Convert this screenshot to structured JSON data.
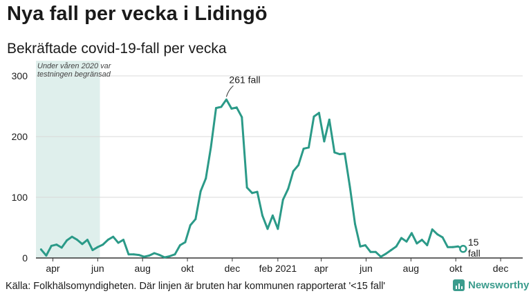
{
  "title": "Nya fall per vecka i Lidingö",
  "subtitle": "Bekräftade covid-19-fall per vecka",
  "footer": "Källa: Folkhälsomyndigheten. Där linjen är bruten har kommunen rapporterat '<15 fall'",
  "brand": "Newsworthy",
  "colors": {
    "line": "#2b9a88",
    "band": "#dfefec",
    "grid": "#d9d9d9",
    "text": "#1a1a1a",
    "brand": "#3b9c8d"
  },
  "chart_data": {
    "type": "line",
    "title": "Nya fall per vecka i Lidingö",
    "subtitle": "Bekräftade covid-19-fall per vecka",
    "ylim": [
      0,
      300
    ],
    "yticks": [
      0,
      100,
      200,
      300
    ],
    "grid": true,
    "x_axis": {
      "start": "2020-03-09",
      "end": "2021-12-31",
      "ticks": [
        {
          "date": "2020-04-01",
          "label": "apr"
        },
        {
          "date": "2020-06-01",
          "label": "jun"
        },
        {
          "date": "2020-08-01",
          "label": "aug"
        },
        {
          "date": "2020-10-01",
          "label": "okt"
        },
        {
          "date": "2020-12-01",
          "label": "dec"
        },
        {
          "date": "2021-02-01",
          "label": "feb 2021"
        },
        {
          "date": "2021-04-01",
          "label": "apr"
        },
        {
          "date": "2021-06-01",
          "label": "jun"
        },
        {
          "date": "2021-08-01",
          "label": "aug"
        },
        {
          "date": "2021-10-01",
          "label": "okt"
        },
        {
          "date": "2021-12-01",
          "label": "dec"
        }
      ]
    },
    "shaded_region": {
      "from": "2020-03-09",
      "to": "2020-06-04",
      "label_line1": "Under våren 2020 var",
      "label_line2": "testningen begränsad"
    },
    "series": [
      {
        "points": [
          [
            "2020-03-16",
            14
          ],
          [
            "2020-03-23",
            4
          ],
          [
            "2020-03-30",
            20
          ],
          [
            "2020-04-06",
            22
          ],
          [
            "2020-04-13",
            17
          ],
          [
            "2020-04-20",
            29
          ],
          [
            "2020-04-27",
            35
          ],
          [
            "2020-05-04",
            30
          ],
          [
            "2020-05-11",
            23
          ],
          [
            "2020-05-18",
            30
          ],
          [
            "2020-05-25",
            13
          ],
          [
            "2020-06-01",
            18
          ],
          [
            "2020-06-08",
            22
          ],
          [
            "2020-06-15",
            30
          ],
          [
            "2020-06-22",
            35
          ],
          [
            "2020-06-29",
            25
          ],
          [
            "2020-07-06",
            30
          ],
          [
            "2020-07-13",
            6
          ],
          [
            "2020-07-20",
            6
          ],
          [
            "2020-07-27",
            5
          ],
          [
            "2020-08-03",
            2
          ],
          [
            "2020-08-10",
            4
          ],
          [
            "2020-08-17",
            8
          ],
          [
            "2020-08-24",
            5
          ],
          [
            "2020-08-31",
            1
          ],
          [
            "2020-09-07",
            3
          ],
          [
            "2020-09-14",
            6
          ],
          [
            "2020-09-21",
            21
          ],
          [
            "2020-09-28",
            26
          ],
          [
            "2020-10-05",
            54
          ],
          [
            "2020-10-12",
            64
          ],
          [
            "2020-10-19",
            110
          ],
          [
            "2020-10-26",
            131
          ],
          [
            "2020-11-02",
            183
          ],
          [
            "2020-11-09",
            247
          ],
          [
            "2020-11-16",
            249
          ],
          [
            "2020-11-23",
            261
          ],
          [
            "2020-11-30",
            246
          ],
          [
            "2020-12-07",
            248
          ],
          [
            "2020-12-14",
            232
          ],
          [
            "2020-12-21",
            116
          ],
          [
            "2020-12-28",
            107
          ],
          [
            "2021-01-04",
            109
          ],
          [
            "2021-01-11",
            70
          ],
          [
            "2021-01-18",
            48
          ],
          [
            "2021-01-25",
            70
          ],
          [
            "2021-02-01",
            48
          ],
          [
            "2021-02-08",
            96
          ],
          [
            "2021-02-15",
            114
          ],
          [
            "2021-02-22",
            143
          ],
          [
            "2021-03-01",
            153
          ],
          [
            "2021-03-08",
            180
          ],
          [
            "2021-03-15",
            182
          ],
          [
            "2021-03-22",
            233
          ],
          [
            "2021-03-29",
            239
          ],
          [
            "2021-04-05",
            192
          ],
          [
            "2021-04-12",
            228
          ],
          [
            "2021-04-19",
            174
          ],
          [
            "2021-04-26",
            171
          ],
          [
            "2021-05-03",
            172
          ],
          [
            "2021-05-10",
            117
          ],
          [
            "2021-05-17",
            56
          ],
          [
            "2021-05-24",
            19
          ],
          [
            "2021-05-31",
            21
          ],
          [
            "2021-06-07",
            10
          ],
          [
            "2021-06-14",
            10
          ],
          [
            "2021-06-21",
            2
          ],
          [
            "2021-06-28",
            7
          ],
          [
            "2021-07-05",
            13
          ],
          [
            "2021-07-12",
            19
          ],
          [
            "2021-07-19",
            33
          ],
          [
            "2021-07-26",
            27
          ],
          [
            "2021-08-02",
            41
          ],
          [
            "2021-08-09",
            24
          ],
          [
            "2021-08-16",
            30
          ],
          [
            "2021-08-23",
            21
          ],
          [
            "2021-08-30",
            47
          ],
          [
            "2021-09-06",
            39
          ],
          [
            "2021-09-13",
            34
          ],
          [
            "2021-09-20",
            18
          ],
          [
            "2021-09-27",
            18
          ],
          [
            "2021-10-04",
            19
          ],
          [
            "2021-10-11",
            15
          ]
        ]
      }
    ],
    "annotations": [
      {
        "date": "2020-11-23",
        "value": 261,
        "text": "261 fall"
      },
      {
        "date": "2021-10-11",
        "value": 15,
        "line1": "15",
        "line2": "fall"
      }
    ]
  }
}
